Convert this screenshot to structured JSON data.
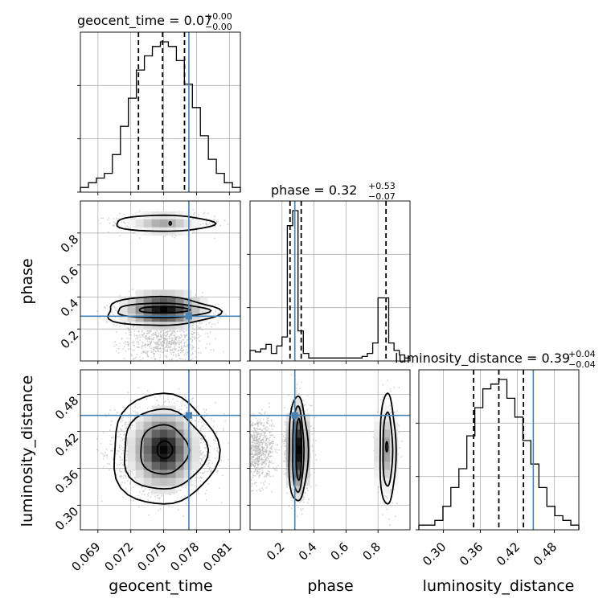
{
  "chart_data": {
    "type": "corner",
    "truth_color": "#4682b4",
    "params": [
      {
        "name": "geocent_time",
        "xlabel": "geocent_time",
        "title_main": "geocent_time = 0.07",
        "title_plus": "+0.00",
        "title_minus": "−0.00",
        "range": [
          0.0674,
          0.082
        ],
        "ticks": [
          0.069,
          0.072,
          0.075,
          0.078,
          0.081
        ],
        "ticklabels": [
          "0.069",
          "0.072",
          "0.075",
          "0.078",
          "0.081"
        ],
        "quantiles": [
          0.0727,
          0.0749,
          0.0769
        ],
        "truth": 0.0773,
        "hist_max": 32,
        "hist_counts": [
          1,
          2,
          3,
          4,
          8,
          14,
          20,
          26,
          29,
          31,
          32,
          31,
          28,
          23,
          18,
          12,
          7,
          4,
          2,
          1
        ]
      },
      {
        "name": "phase",
        "xlabel": "phase",
        "ylabel": "phase",
        "title_main": "phase = 0.32",
        "title_plus": "+0.53",
        "title_minus": "−0.07",
        "range": [
          0.0,
          1.0
        ],
        "ticks": [
          0.2,
          0.4,
          0.6,
          0.8
        ],
        "ticklabels": [
          "0.2",
          "0.4",
          "0.6",
          "0.8"
        ],
        "quantiles": [
          0.25,
          0.32,
          0.85
        ],
        "truth": 0.28,
        "hist_max": 100,
        "hist_counts": [
          7,
          6,
          8,
          11,
          5,
          10,
          16,
          90,
          100,
          20,
          5,
          2,
          2,
          2,
          2,
          2,
          2,
          2,
          2,
          2,
          2,
          3,
          5,
          12,
          42,
          42,
          12,
          7,
          4,
          2
        ]
      },
      {
        "name": "luminosity_distance",
        "xlabel": "luminosity_distance",
        "ylabel": "luminosity_distance",
        "title_main": "luminosity_distance = 0.39",
        "title_plus": "+0.04",
        "title_minus": "−0.04",
        "range": [
          0.26,
          0.52
        ],
        "ticks": [
          0.3,
          0.36,
          0.42,
          0.48
        ],
        "ticklabels": [
          "0.30",
          "0.36",
          "0.42",
          "0.48"
        ],
        "quantiles": [
          0.349,
          0.39,
          0.43
        ],
        "truth": 0.446,
        "hist_max": 32,
        "hist_counts": [
          1,
          1,
          2,
          5,
          9,
          13,
          20,
          26,
          30,
          31,
          32,
          28,
          24,
          19,
          14,
          9,
          5,
          3,
          2,
          1
        ]
      }
    ],
    "grid": true
  }
}
